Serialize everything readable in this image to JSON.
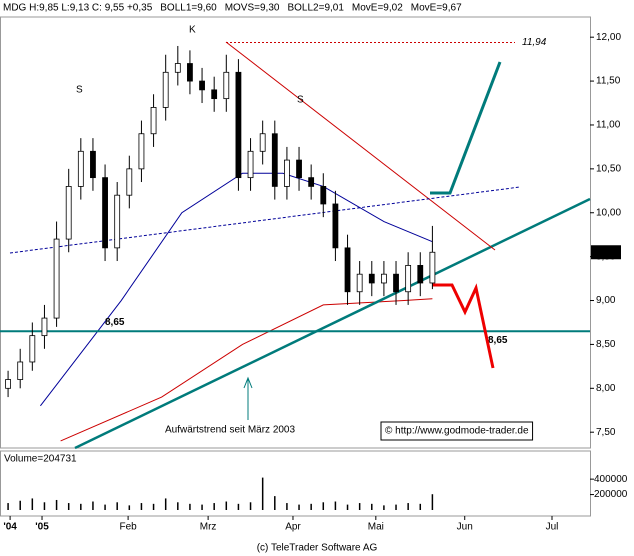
{
  "chart_data": {
    "type": "candlestick",
    "header": [
      "MDG H:9,85 L:9,13 C: 9,55 +0,35",
      "BOLL1=9,60",
      "MOVS=9,30",
      "BOLL2=9,01",
      "MovE=9,02",
      "MovE=9,67"
    ],
    "header_colors": [
      "#000000",
      "#999999",
      "#000000",
      "#999999",
      "#cc0000",
      "#000099"
    ],
    "x": [
      2,
      5,
      8,
      11,
      14,
      17,
      20,
      23,
      26,
      29,
      32,
      35,
      38,
      41,
      44,
      47,
      50,
      53,
      56,
      59,
      62,
      65,
      68,
      71,
      74,
      77,
      80,
      83,
      86,
      89,
      92,
      95,
      98,
      101,
      104,
      107
    ],
    "open": [
      8.0,
      8.1,
      8.3,
      8.6,
      8.8,
      9.7,
      10.3,
      10.7,
      10.4,
      9.6,
      10.2,
      10.5,
      10.9,
      11.2,
      11.6,
      11.7,
      11.5,
      11.4,
      11.3,
      11.6,
      10.4,
      10.7,
      10.9,
      10.3,
      10.6,
      10.4,
      10.3,
      10.1,
      9.6,
      9.1,
      9.3,
      9.2,
      9.3,
      9.1,
      9.4,
      9.2
    ],
    "high": [
      8.2,
      8.45,
      8.75,
      8.95,
      9.9,
      10.5,
      10.85,
      10.85,
      10.55,
      10.35,
      10.65,
      11.05,
      11.35,
      11.8,
      11.9,
      11.85,
      11.65,
      11.55,
      11.8,
      11.75,
      10.85,
      11.05,
      11.05,
      10.75,
      10.75,
      10.55,
      10.45,
      10.25,
      9.75,
      9.45,
      9.45,
      9.45,
      9.45,
      9.55,
      9.55,
      9.85
    ],
    "low": [
      7.9,
      8.0,
      8.2,
      8.45,
      8.7,
      9.55,
      10.15,
      10.25,
      9.45,
      9.45,
      10.05,
      10.35,
      10.75,
      11.05,
      11.45,
      11.35,
      11.25,
      11.15,
      11.15,
      10.25,
      10.25,
      10.55,
      10.15,
      10.15,
      10.25,
      10.15,
      9.95,
      9.45,
      8.95,
      8.95,
      9.05,
      9.05,
      8.95,
      8.95,
      9.05,
      9.13
    ],
    "close": [
      8.1,
      8.3,
      8.6,
      8.8,
      9.7,
      10.3,
      10.7,
      10.4,
      9.6,
      10.2,
      10.5,
      10.9,
      11.2,
      11.6,
      11.7,
      11.5,
      11.4,
      11.3,
      11.6,
      10.4,
      10.7,
      10.9,
      10.3,
      10.6,
      10.4,
      10.3,
      10.1,
      9.6,
      9.1,
      9.3,
      9.2,
      9.3,
      9.1,
      9.4,
      9.2,
      9.55
    ],
    "volume": [
      90000,
      120000,
      150000,
      100000,
      130000,
      90000,
      80000,
      110000,
      70000,
      100000,
      60000,
      90000,
      80000,
      150000,
      100000,
      80000,
      70000,
      90000,
      110000,
      80000,
      100000,
      420000,
      180000,
      90000,
      70000,
      80000,
      100000,
      110000,
      70000,
      90000,
      80000,
      60000,
      70000,
      90000,
      80000,
      204731
    ],
    "volume_label": "Volume=204731",
    "overlays": [
      {
        "color": "#cc0000",
        "x": [
          15,
          40,
          60,
          80,
          100,
          107
        ],
        "values": [
          7.4,
          7.9,
          8.5,
          8.95,
          9.0,
          9.02
        ]
      },
      {
        "color": "#000099",
        "x": [
          10,
          30,
          45,
          60,
          70,
          80,
          95,
          107
        ],
        "values": [
          7.8,
          9.0,
          10.0,
          10.45,
          10.45,
          10.3,
          9.9,
          9.67
        ]
      }
    ],
    "xlim": [
      0,
      146
    ],
    "xticks": [
      {
        "value": 2.5,
        "label": "'04"
      },
      {
        "value": 10.4,
        "label": "'05"
      },
      {
        "value": 31.7,
        "label": "Feb"
      },
      {
        "value": 51.5,
        "label": "Mrz"
      },
      {
        "value": 72.5,
        "label": "Apr"
      },
      {
        "value": 93,
        "label": "Mai"
      },
      {
        "value": 115,
        "label": "Jun"
      },
      {
        "value": 136.6,
        "label": "Jul"
      }
    ],
    "ylim": [
      7.32,
      12.23
    ],
    "yticks": [
      {
        "value": 7.5,
        "label": "7,50"
      },
      {
        "value": 8,
        "label": "8,00"
      },
      {
        "value": 8.5,
        "label": "8,50"
      },
      {
        "value": 9,
        "label": "9,00"
      },
      {
        "value": 9.5,
        "label": "9,50"
      },
      {
        "value": 10,
        "label": "10,00"
      },
      {
        "value": 10.5,
        "label": "10,50"
      },
      {
        "value": 11,
        "label": "11,00"
      },
      {
        "value": 11.5,
        "label": "11,50"
      },
      {
        "value": 12,
        "label": "12,00"
      }
    ],
    "vlim": [
      0,
      700000
    ],
    "vticks": [
      200000,
      400000
    ],
    "last_price": {
      "value": 9.55,
      "label": "9,55"
    },
    "support": {
      "value": 8.65,
      "label": "8,65"
    },
    "high_line": {
      "value": 11.94,
      "label": "11,94"
    },
    "annotations": [
      "S",
      "K",
      "S",
      "Aufwärtstrend seit März 2003",
      "© http://www.godmode-trader.de"
    ],
    "footer": "(c) TeleTrader Software AG"
  }
}
